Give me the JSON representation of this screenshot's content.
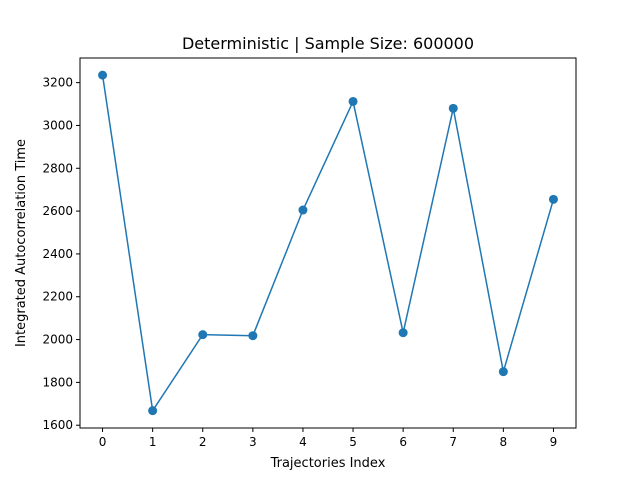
{
  "chart_data": {
    "type": "line",
    "title": "Deterministic | Sample Size: 600000",
    "xlabel": "Trajectories Index",
    "ylabel": "Integrated Autocorrelation Time",
    "x": [
      0,
      1,
      2,
      3,
      4,
      5,
      6,
      7,
      8,
      9
    ],
    "series": [
      {
        "values": [
          3235,
          1668,
          2023,
          2018,
          2605,
          3112,
          2032,
          3080,
          1850,
          2655
        ]
      }
    ],
    "xlim": [
      -0.45,
      9.45
    ],
    "ylim": [
      1587,
      3315
    ],
    "xticks": [
      "0",
      "1",
      "2",
      "3",
      "4",
      "5",
      "6",
      "7",
      "8",
      "9"
    ],
    "yticks": [
      "1600",
      "1800",
      "2000",
      "2200",
      "2400",
      "2600",
      "2800",
      "3000",
      "3200"
    ],
    "grid": false,
    "line_color": "#1f77b4",
    "marker": "circle"
  }
}
